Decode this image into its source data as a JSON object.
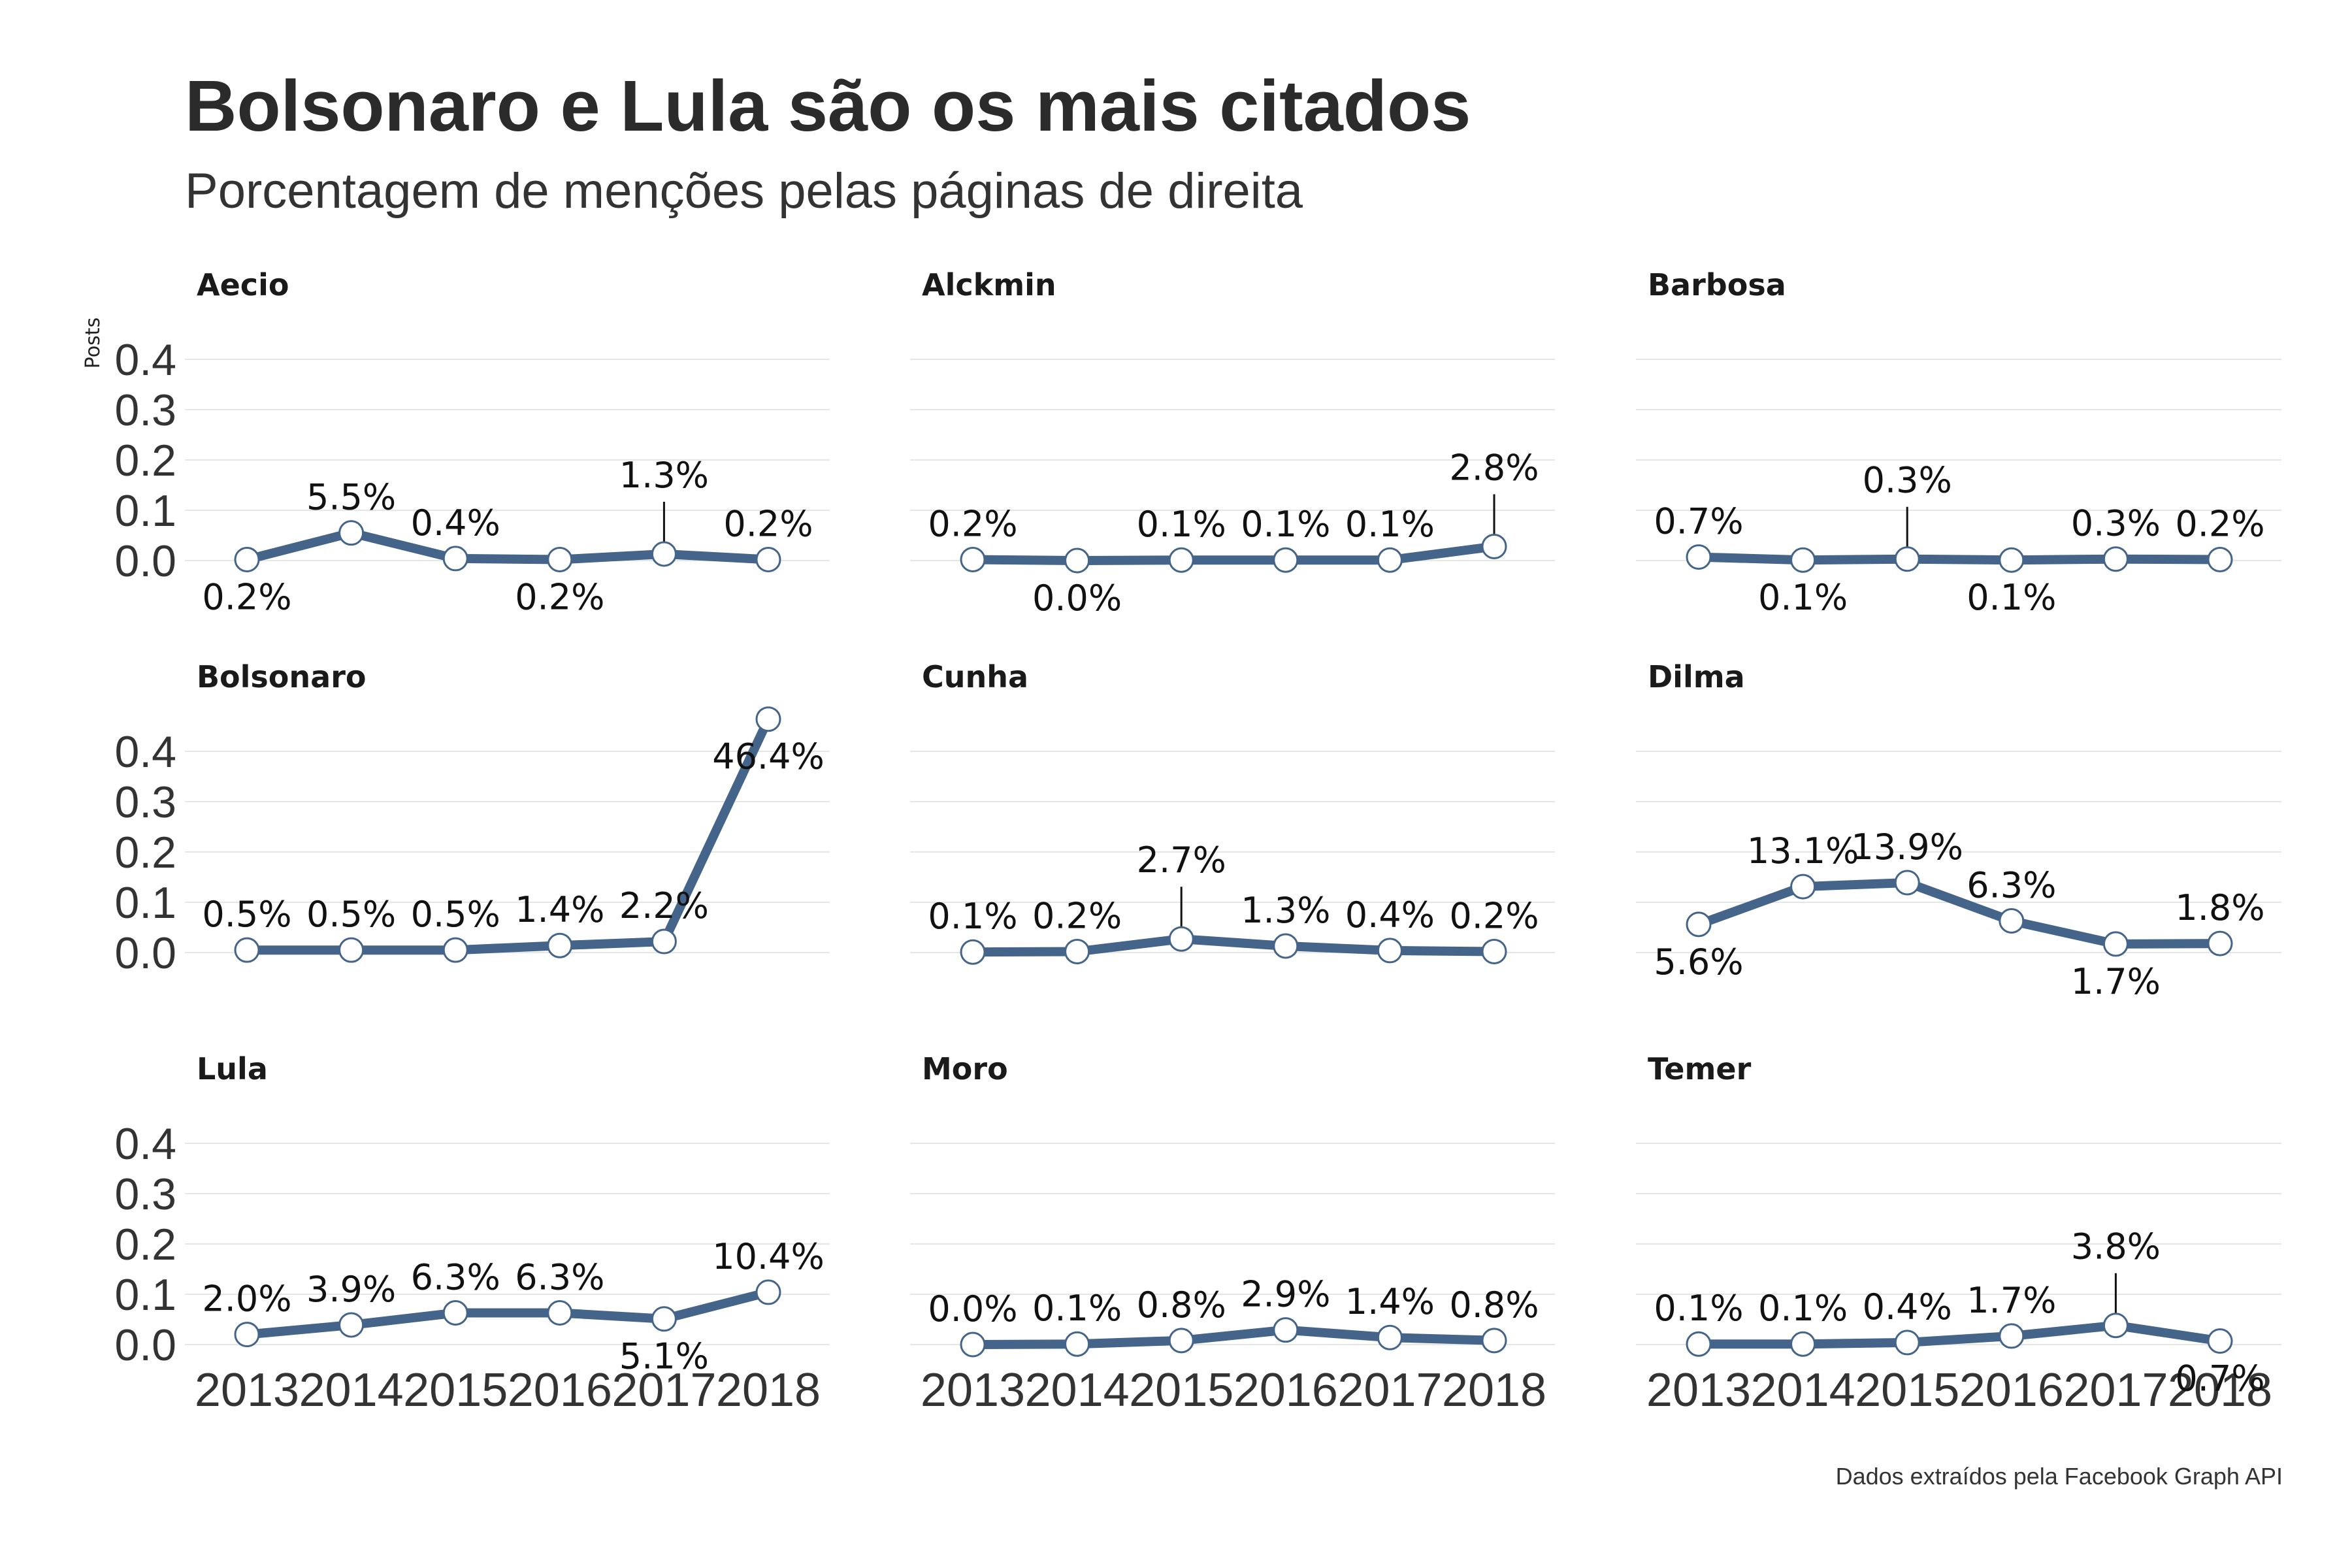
{
  "title": "Bolsonaro e Lula são os mais citados",
  "subtitle": "Porcentagem de menções pelas páginas de direita",
  "caption": "Dados extraídos pela Facebook Graph API",
  "colors": {
    "line": "#44648a",
    "point_fill": "#ffffff",
    "point_stroke": "#44648a",
    "grid": "#e6e6e6"
  },
  "chart_data": {
    "type": "line",
    "ylabel": "Posts",
    "xlabel": "",
    "x": [
      "2013",
      "2014",
      "2015",
      "2016",
      "2017",
      "2018"
    ],
    "ylim": [
      0,
      0.45
    ],
    "y_ticks": [
      "0.0",
      "0.1",
      "0.2",
      "0.3",
      "0.4"
    ],
    "grid": true,
    "facets": [
      {
        "name": "Aecio",
        "values": [
          0.002,
          0.055,
          0.004,
          0.002,
          0.013,
          0.002
        ],
        "labels": [
          "0.2%",
          "5.5%",
          "0.4%",
          "0.2%",
          "1.3%",
          "0.2%"
        ]
      },
      {
        "name": "Alckmin",
        "values": [
          0.002,
          0.0,
          0.001,
          0.001,
          0.001,
          0.028
        ],
        "labels": [
          "0.2%",
          "0.0%",
          "0.1%",
          "0.1%",
          "0.1%",
          "2.8%"
        ]
      },
      {
        "name": "Barbosa",
        "values": [
          0.007,
          0.001,
          0.003,
          0.001,
          0.003,
          0.002
        ],
        "labels": [
          "0.7%",
          "0.1%",
          "0.3%",
          "0.1%",
          "0.3%",
          "0.2%"
        ]
      },
      {
        "name": "Bolsonaro",
        "values": [
          0.005,
          0.005,
          0.005,
          0.014,
          0.022,
          0.464
        ],
        "labels": [
          "0.5%",
          "0.5%",
          "0.5%",
          "1.4%",
          "2.2%",
          "46.4%"
        ]
      },
      {
        "name": "Cunha",
        "values": [
          0.001,
          0.002,
          0.027,
          0.013,
          0.004,
          0.002
        ],
        "labels": [
          "0.1%",
          "0.2%",
          "2.7%",
          "1.3%",
          "0.4%",
          "0.2%"
        ]
      },
      {
        "name": "Dilma",
        "values": [
          0.056,
          0.131,
          0.139,
          0.063,
          0.017,
          0.018
        ],
        "labels": [
          "5.6%",
          "13.1%",
          "13.9%",
          "6.3%",
          "1.7%",
          "1.8%"
        ]
      },
      {
        "name": "Lula",
        "values": [
          0.02,
          0.039,
          0.063,
          0.063,
          0.051,
          0.104
        ],
        "labels": [
          "2.0%",
          "3.9%",
          "6.3%",
          "6.3%",
          "5.1%",
          "10.4%"
        ]
      },
      {
        "name": "Moro",
        "values": [
          0.0,
          0.001,
          0.008,
          0.029,
          0.014,
          0.008
        ],
        "labels": [
          "0.0%",
          "0.1%",
          "0.8%",
          "2.9%",
          "1.4%",
          "0.8%"
        ]
      },
      {
        "name": "Temer",
        "values": [
          0.001,
          0.001,
          0.004,
          0.017,
          0.038,
          0.007
        ],
        "labels": [
          "0.1%",
          "0.1%",
          "0.4%",
          "1.7%",
          "3.8%",
          "0.7%"
        ]
      }
    ]
  }
}
